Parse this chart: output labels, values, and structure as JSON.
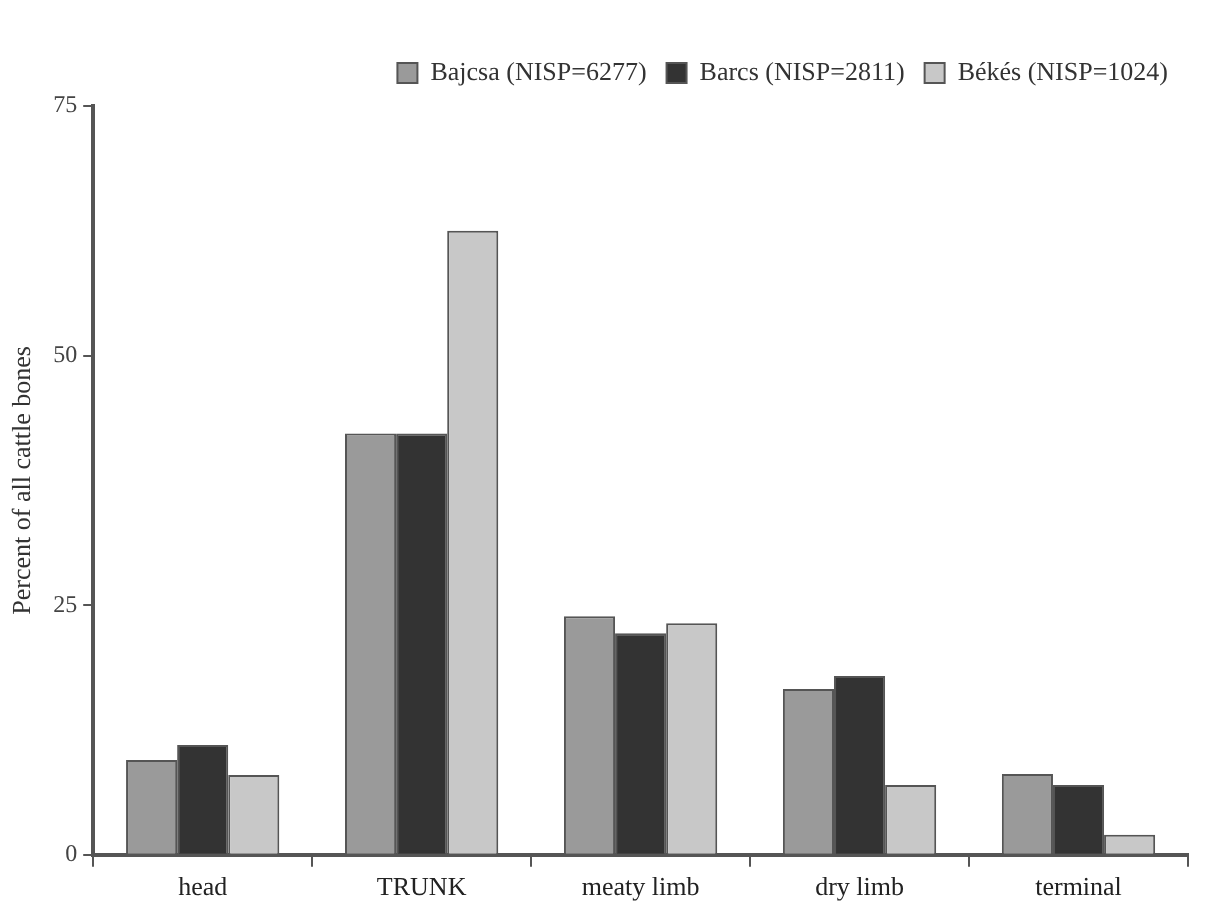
{
  "chart_data": {
    "type": "bar",
    "ylabel": "Percent of all cattle bones",
    "categories": [
      "head",
      "TRUNK",
      "meaty limb",
      "dry limb",
      "terminal"
    ],
    "series": [
      {
        "name": "Bajcsa (NISP=6277)",
        "color": "#9a9a9a",
        "values": [
          9.5,
          42.2,
          23.9,
          16.6,
          8.1
        ]
      },
      {
        "name": "Barcs (NISP=2811)",
        "color": "#333333",
        "values": [
          11,
          42.2,
          22.2,
          17.9,
          7
        ]
      },
      {
        "name": "Békés (NISP=1024)",
        "color": "#c8c8c8",
        "values": [
          8,
          62.5,
          23.2,
          7,
          2
        ]
      }
    ],
    "ylim": [
      0,
      75
    ],
    "yticks": [
      0,
      25,
      50,
      75
    ],
    "grid": false,
    "legend": "top right"
  }
}
